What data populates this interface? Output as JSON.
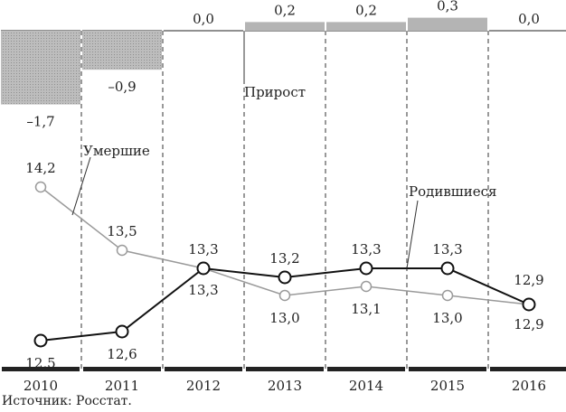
{
  "chart_data": {
    "type": "line",
    "categories": [
      "2010",
      "2011",
      "2012",
      "2013",
      "2014",
      "2015",
      "2016"
    ],
    "series": [
      {
        "name": "Родившиеся",
        "values": [
          12.5,
          12.6,
          13.3,
          13.2,
          13.3,
          13.3,
          12.9
        ],
        "labels": [
          "12,5",
          "12,6",
          "13,3",
          "13,2",
          "13,3",
          "13,3",
          "12,9"
        ]
      },
      {
        "name": "Умершие",
        "values": [
          14.2,
          13.5,
          13.3,
          13.0,
          13.1,
          13.0,
          12.9
        ],
        "labels": [
          "14,2",
          "13,5",
          "13,3",
          "13,0",
          "13,1",
          "13,0",
          "12,9"
        ]
      }
    ],
    "increase": {
      "name": "Прирост",
      "values": [
        -1.7,
        -0.9,
        0.0,
        0.2,
        0.2,
        0.3,
        0.0
      ],
      "labels": [
        "–1,7",
        "–0,9",
        "0,0",
        "0,2",
        "0,2",
        "0,3",
        "0,0"
      ]
    },
    "colors": {
      "births": "#111111",
      "deaths": "#9a9a9a",
      "increase_bar": "#b4b4b4"
    },
    "source": "Источник: Росстат."
  }
}
